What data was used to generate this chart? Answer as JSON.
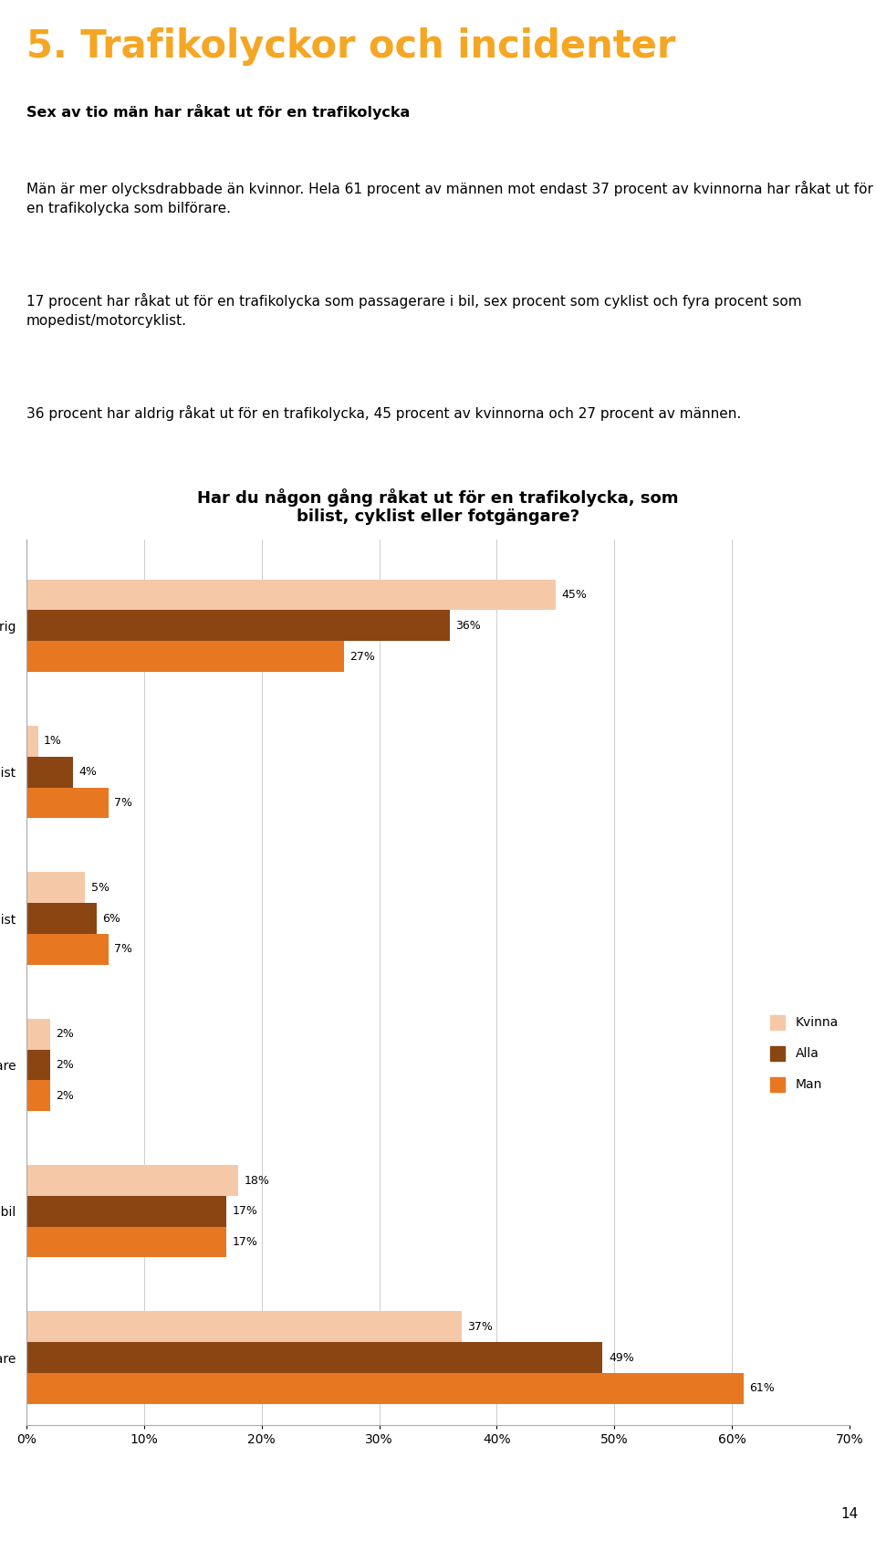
{
  "page_title": "5. Trafikolyckor och incidenter",
  "page_title_color": "#F5A623",
  "bold_heading": "Sex av tio män har råkat ut för en trafikolycka",
  "para1": "Män är mer olycksdrabbade än kvinnor. Hela 61 procent av männen mot endast 37 procent av kvinnorna har råkat ut för en trafikolycka som bilförare.",
  "para2": "17 procent har råkat ut för en trafikolycka som passagerare i bil, sex procent som cyklist och fyra procent som mopedist/motorcyklist.",
  "para3": "36 procent har aldrig råkat ut för en trafikolycka, 45 procent av kvinnorna och 27 procent av männen.",
  "chart_title": "Har du någon gång råkat ut för en trafikolycka, som\nbilist, cyklist eller fotgängare?",
  "categories": [
    "Ja, som bilförare",
    "Ja, som passagerare i bil",
    "ja, som fotgängare",
    "Ja, som cyklist",
    "Ja, som mopedist/motorcyklist",
    "Nej, aldrig"
  ],
  "kvinna": [
    37,
    18,
    2,
    5,
    1,
    45
  ],
  "alla": [
    49,
    17,
    2,
    6,
    4,
    36
  ],
  "man": [
    61,
    17,
    2,
    7,
    7,
    27
  ],
  "color_kvinna": "#F5C9A8",
  "color_alla": "#8B4513",
  "color_man": "#E87722",
  "legend_labels": [
    "Kvinna",
    "Alla",
    "Man"
  ],
  "xlim": [
    0,
    70
  ],
  "xticks": [
    0,
    10,
    20,
    30,
    40,
    50,
    60,
    70
  ],
  "xticklabels": [
    "0%",
    "10%",
    "20%",
    "30%",
    "40%",
    "50%",
    "60%",
    "70%"
  ],
  "page_number": "14",
  "background_color": "#ffffff"
}
